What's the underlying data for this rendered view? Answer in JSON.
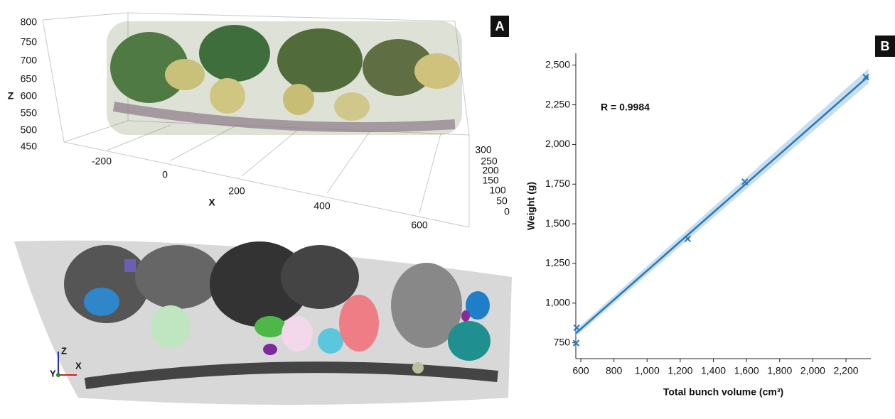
{
  "panel_a": {
    "label": "A",
    "z_label": "Z",
    "x_label": "X",
    "z_ticks": [
      "800",
      "750",
      "700",
      "650",
      "600",
      "550",
      "500",
      "450"
    ],
    "x_ticks": [
      "-200",
      "0",
      "200",
      "400",
      "600"
    ],
    "y_ticks": [
      "300",
      "250",
      "200",
      "150",
      "100",
      "50",
      "0"
    ],
    "axes_icon": [
      "Z",
      "Y",
      "X"
    ]
  },
  "chart_data": {
    "type": "scatter",
    "panel_label": "B",
    "annotation": "R = 0.9984",
    "x_label": "Total bunch volume (cm³)",
    "y_label": "Weight (g)",
    "x": [
      572,
      575,
      1245,
      1590,
      2320
    ],
    "values": [
      748,
      845,
      1405,
      1765,
      2425
    ],
    "color": "#2a78b8",
    "fit": {
      "x": [
        570,
        2335
      ],
      "y": [
        810,
        2430
      ],
      "lower": [
        790,
        2385
      ],
      "upper": [
        832,
        2478
      ],
      "color": "#2a78b8",
      "band_color": "#aed0ea"
    },
    "xlim": [
      570,
      2350
    ],
    "ylim": [
      650,
      2575
    ],
    "xticks": [
      600,
      800,
      {
        "value": 1000,
        "label": "1,000"
      },
      {
        "value": 1200,
        "label": "1,200"
      },
      {
        "value": 1400,
        "label": "1,400"
      },
      {
        "value": 1600,
        "label": "1,600"
      },
      {
        "value": 1800,
        "label": "1,800"
      },
      {
        "value": 2000,
        "label": "2,000"
      },
      {
        "value": 2200,
        "label": "2,200"
      }
    ],
    "yticks": [
      750,
      {
        "value": 1000,
        "label": "1,000"
      },
      {
        "value": 1250,
        "label": "1,250"
      },
      {
        "value": 1500,
        "label": "1,500"
      },
      {
        "value": 1750,
        "label": "1,750"
      },
      {
        "value": 2000,
        "label": "2,000"
      },
      {
        "value": 2250,
        "label": "2,250"
      },
      {
        "value": 2500,
        "label": "2,500"
      }
    ],
    "grid": false
  }
}
